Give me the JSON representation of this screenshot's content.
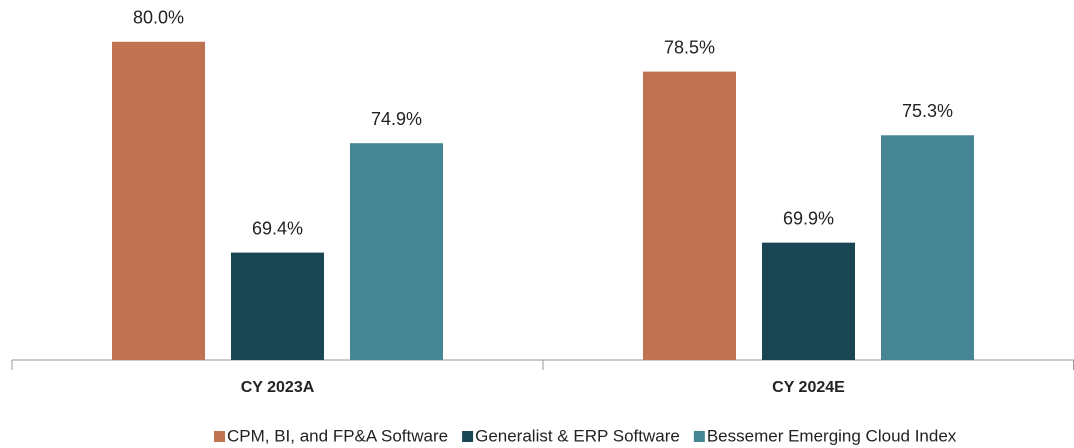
{
  "chart_data": {
    "type": "bar",
    "categories": [
      "CY 2023A",
      "CY 2024E"
    ],
    "series": [
      {
        "name": "CPM, BI, and FP&A Software",
        "color": "#c07350",
        "values": [
          80.0,
          78.5
        ],
        "value_labels": [
          "80.0%",
          "78.5%"
        ]
      },
      {
        "name": "Generalist & ERP Software",
        "color": "#1a4654",
        "values": [
          69.4,
          69.9
        ],
        "value_labels": [
          "69.4%",
          "69.9%"
        ]
      },
      {
        "name": "Bessemer Emerging Cloud Index",
        "color": "#468593",
        "values": [
          74.9,
          75.3
        ],
        "value_labels": [
          "74.9%",
          "75.3%"
        ]
      }
    ],
    "ylim": [
      64,
      82
    ],
    "legend": "bottom"
  }
}
